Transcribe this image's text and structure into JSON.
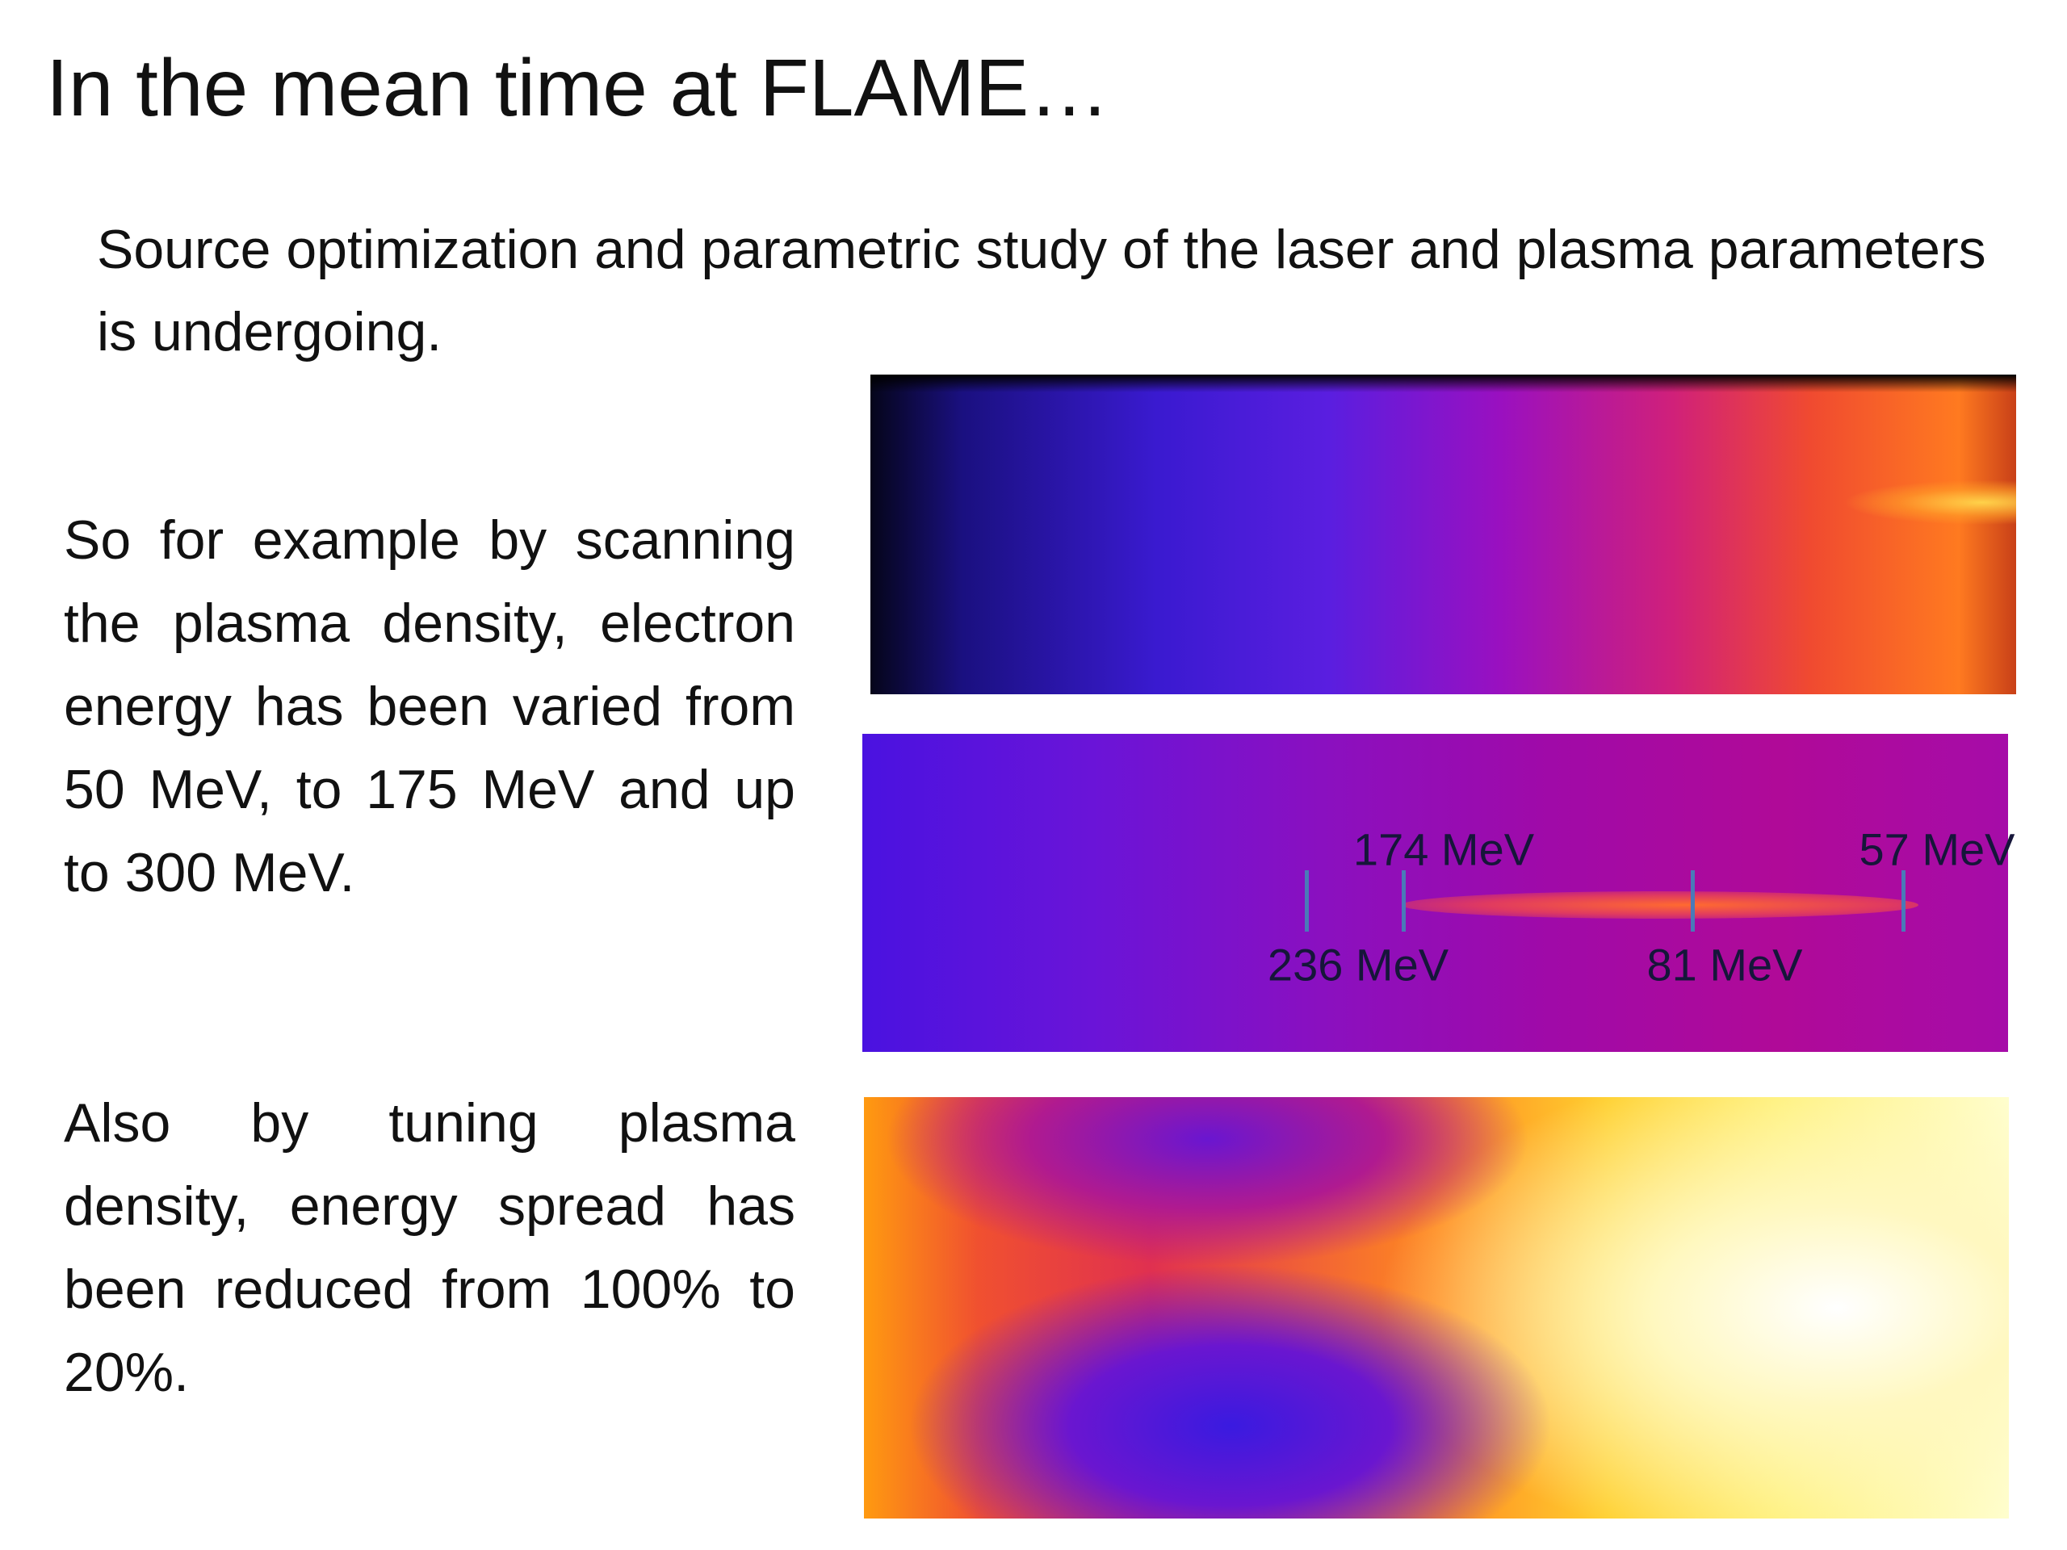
{
  "header": {
    "title": "In the mean time at FLAME…",
    "subtitle": "Source optimization and parametric study of the laser and plasma parameters is undergoing."
  },
  "paragraphs": [
    "So for example by scanning the plasma density, electron energy has been varied from 50 MeV, to 175 MeV and up to 300 MeV.",
    "Also by tuning plasma density, energy spread has been reduced from 100% to 20%."
  ],
  "spectrum_labels": [
    "174 MeV",
    "57 MeV",
    "236 MeV",
    "81 MeV"
  ]
}
